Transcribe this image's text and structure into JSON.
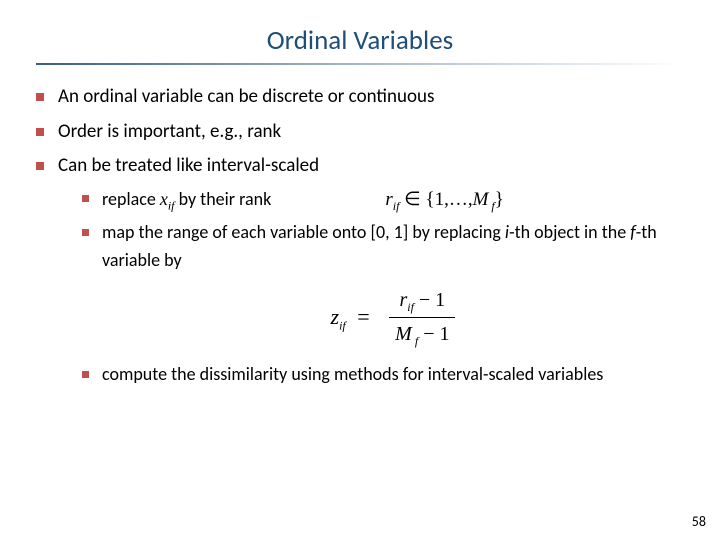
{
  "title": "Ordinal Variables",
  "colors": {
    "title_color": "#1f4e79",
    "bullet_color": "#c0504d",
    "text_color": "#000000",
    "background": "#ffffff",
    "rule_start": "rgba(31,78,121,0.9)",
    "rule_end": "rgba(255,255,255,0)"
  },
  "typography": {
    "title_fontsize_pt": 20,
    "body_fontsize_pt": 14,
    "body_font": "Calibri",
    "title_font": "Candara",
    "math_font": "Times New Roman"
  },
  "bullets": [
    {
      "text": "An ordinal variable can be discrete or continuous"
    },
    {
      "text": "Order is important, e.g., rank"
    },
    {
      "text": "Can be treated like interval-scaled",
      "sub": [
        {
          "prefix": "replace ",
          "var": "x",
          "var_sub": "if",
          "suffix": "  by their rank",
          "eq_inline": {
            "lhs_var": "r",
            "lhs_sub": "if",
            "set_open": "∈ {1,…,",
            "M": "M",
            "M_sub": " f",
            "set_close": "}"
          }
        },
        {
          "prefix": "map the range of each variable onto [0, 1] by replacing ",
          "ith": "i",
          "mid": "-th object in the ",
          "fth": "f",
          "suffix": "-th variable by"
        },
        {
          "text": "compute the dissimilarity using methods for interval-scaled variables"
        }
      ]
    }
  ],
  "formula": {
    "lhs_var": "z",
    "lhs_sub": "if",
    "eq": "=",
    "num_var": "r",
    "num_sub": "if",
    "num_tail": " − 1",
    "den_var": "M",
    "den_sub": " f",
    "den_tail": " − 1"
  },
  "page_number": "58"
}
